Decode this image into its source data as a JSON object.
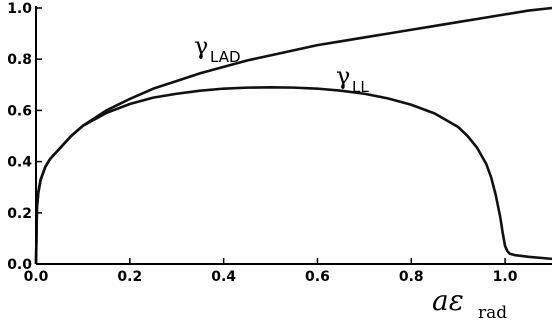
{
  "chart_data": {
    "type": "line",
    "xlabel": "aε",
    "xlabel_sub": "rad",
    "xlim": [
      0,
      1.1
    ],
    "ylim": [
      0,
      1.0
    ],
    "x_ticks": [
      "0.0",
      "0.2",
      "0.4",
      "0.6",
      "0.8",
      "1.0"
    ],
    "y_ticks": [
      "0.0",
      "0.2",
      "0.4",
      "0.6",
      "0.8",
      "1.0"
    ],
    "grid": false,
    "series": [
      {
        "name": "γLAD",
        "label_main": "γ",
        "label_sub": "LAD",
        "color": "#111111",
        "x": [
          0,
          0.002,
          0.005,
          0.01,
          0.02,
          0.03,
          0.05,
          0.075,
          0.1,
          0.15,
          0.2,
          0.25,
          0.3,
          0.35,
          0.4,
          0.45,
          0.5,
          0.55,
          0.6,
          0.65,
          0.7,
          0.75,
          0.8,
          0.85,
          0.9,
          0.95,
          1.0,
          1.05,
          1.1
        ],
        "y": [
          0.0,
          0.22,
          0.28,
          0.33,
          0.38,
          0.41,
          0.45,
          0.5,
          0.54,
          0.6,
          0.645,
          0.685,
          0.715,
          0.745,
          0.77,
          0.795,
          0.815,
          0.835,
          0.855,
          0.87,
          0.885,
          0.9,
          0.915,
          0.93,
          0.945,
          0.96,
          0.975,
          0.99,
          1.0
        ]
      },
      {
        "name": "γLL",
        "label_main": "γ",
        "label_sub": "LL",
        "color": "#111111",
        "x": [
          0,
          0.002,
          0.005,
          0.01,
          0.02,
          0.03,
          0.05,
          0.075,
          0.1,
          0.15,
          0.2,
          0.25,
          0.3,
          0.35,
          0.4,
          0.45,
          0.5,
          0.55,
          0.6,
          0.65,
          0.7,
          0.75,
          0.8,
          0.85,
          0.9,
          0.92,
          0.94,
          0.96,
          0.97,
          0.98,
          0.99,
          0.995,
          1.0,
          1.005,
          1.01,
          1.02,
          1.05,
          1.1
        ],
        "y": [
          0.0,
          0.22,
          0.28,
          0.33,
          0.38,
          0.41,
          0.45,
          0.5,
          0.54,
          0.59,
          0.625,
          0.65,
          0.665,
          0.677,
          0.685,
          0.689,
          0.69,
          0.689,
          0.685,
          0.677,
          0.665,
          0.647,
          0.622,
          0.588,
          0.535,
          0.5,
          0.455,
          0.39,
          0.34,
          0.27,
          0.18,
          0.12,
          0.07,
          0.05,
          0.04,
          0.035,
          0.028,
          0.02
        ]
      }
    ]
  }
}
